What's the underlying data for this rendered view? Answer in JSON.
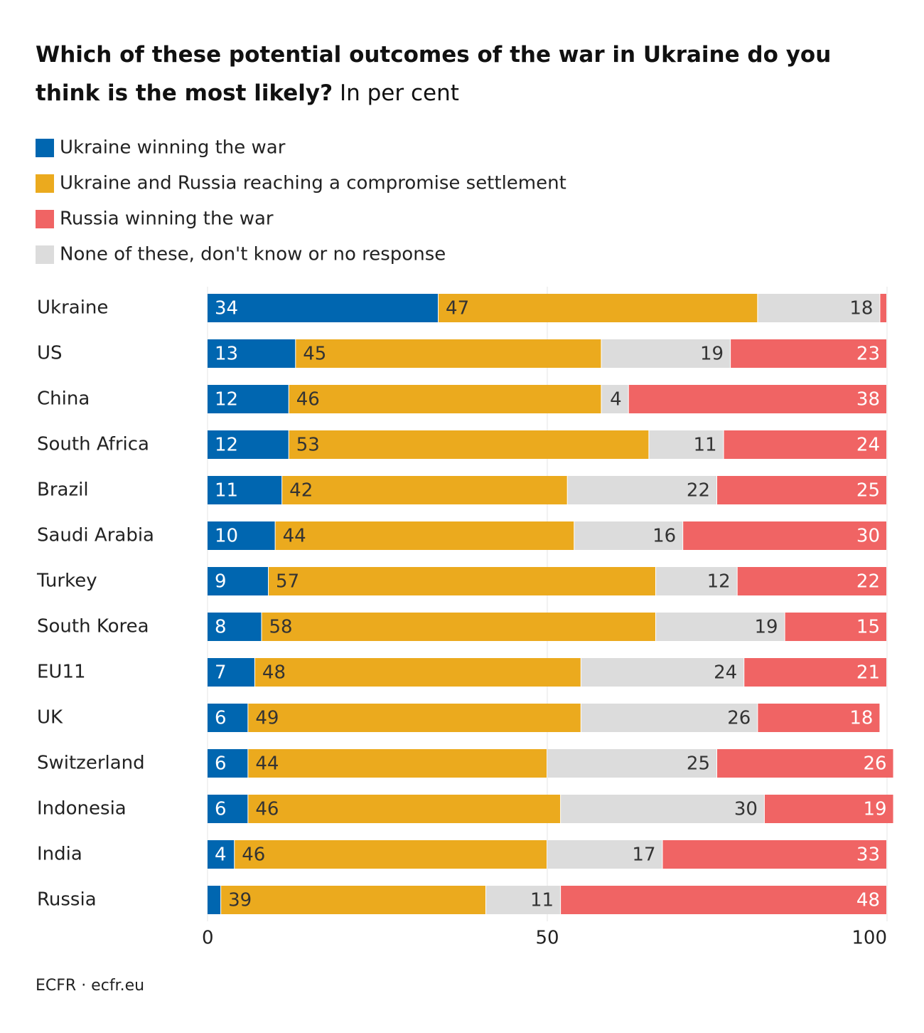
{
  "chart_data": {
    "type": "stacked-bar",
    "orientation": "horizontal",
    "title": "Which of these potential outcomes of the war in Ukraine do you think is the most likely?",
    "subtitle": "In per cent",
    "source": "ECFR · ecfr.eu",
    "categories": [
      "Ukraine",
      "US",
      "China",
      "South Africa",
      "Brazil",
      "Saudi Arabia",
      "Turkey",
      "South Korea",
      "EU11",
      "UK",
      "Switzerland",
      "Indonesia",
      "India",
      "Russia"
    ],
    "series": [
      {
        "name": "Ukraine winning the war",
        "color": "#0066b0",
        "values": [
          34,
          13,
          12,
          12,
          11,
          10,
          9,
          8,
          7,
          6,
          6,
          6,
          4,
          2
        ]
      },
      {
        "name": "Ukraine and Russia reaching a compromise settlement",
        "color": "#ebaa1e",
        "values": [
          47,
          45,
          46,
          53,
          42,
          44,
          57,
          58,
          48,
          49,
          44,
          46,
          46,
          39
        ]
      },
      {
        "name": "Russia winning the war",
        "color": "#f06464",
        "values": [
          1,
          23,
          38,
          24,
          25,
          30,
          22,
          15,
          21,
          18,
          26,
          19,
          33,
          48
        ]
      },
      {
        "name": "None of these, don't know or no response",
        "color": "#dcdcdc",
        "values": [
          18,
          19,
          4,
          11,
          22,
          16,
          12,
          19,
          24,
          26,
          25,
          30,
          17,
          11
        ]
      }
    ],
    "xlim": [
      0,
      100
    ],
    "xticks": [
      0,
      50,
      100
    ],
    "grid": true
  }
}
